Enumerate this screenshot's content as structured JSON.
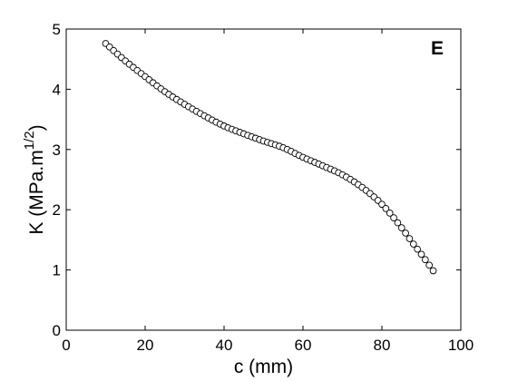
{
  "chart_data": {
    "type": "scatter",
    "panel_label": "E",
    "xlabel": "c (mm)",
    "ylabel": {
      "main": "K (MPa.m",
      "superscript": "1/2",
      "close": ")"
    },
    "xlim": [
      0,
      100
    ],
    "ylim": [
      0,
      5
    ],
    "xticks": [
      0,
      20,
      40,
      60,
      80,
      100
    ],
    "yticks": [
      0,
      1,
      2,
      3,
      4,
      5
    ],
    "grid": false,
    "marker": "open-circle",
    "colors": {
      "marker_stroke": "#000000",
      "marker_fill": "#ffffff",
      "axes": "#000000"
    },
    "series": [
      {
        "x": [
          10,
          15,
          20,
          25,
          30,
          35,
          40,
          45,
          50,
          55,
          60,
          65,
          70,
          75,
          80,
          85,
          88,
          90,
          92,
          93.5
        ],
        "y": [
          4.76,
          4.47,
          4.21,
          3.96,
          3.75,
          3.56,
          3.39,
          3.26,
          3.14,
          3.03,
          2.87,
          2.73,
          2.58,
          2.37,
          2.09,
          1.7,
          1.43,
          1.26,
          1.08,
          0.94
        ]
      }
    ]
  }
}
